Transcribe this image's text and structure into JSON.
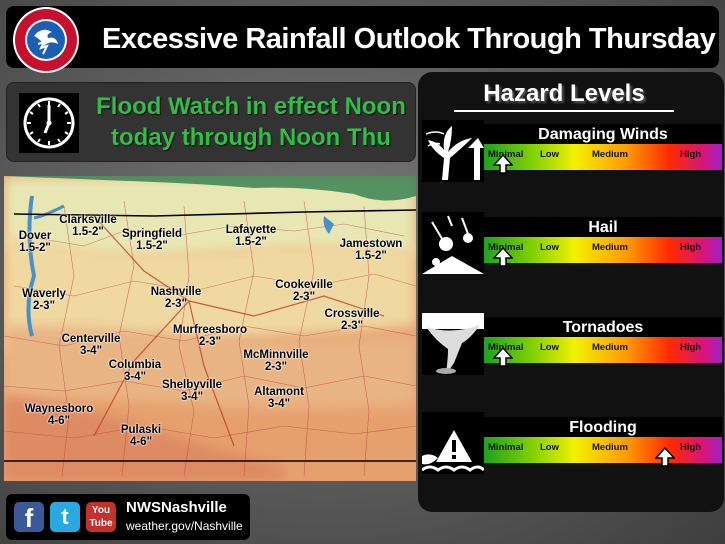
{
  "header": {
    "title": "Excessive Rainfall Outlook Through Thursday",
    "logo_text": "NATIONAL WEATHER SERVICE"
  },
  "watch": {
    "line1": "Flood Watch in effect Noon",
    "line2": "today through Noon Thu"
  },
  "map": {
    "cities": [
      {
        "name": "Clarksville",
        "amount": "1.5-2\""
      },
      {
        "name": "Dover",
        "amount": "1.5-2\""
      },
      {
        "name": "Springfield",
        "amount": "1.5-2\""
      },
      {
        "name": "Lafayette",
        "amount": "1.5-2\""
      },
      {
        "name": "Jamestown",
        "amount": "1.5-2\""
      },
      {
        "name": "Waverly",
        "amount": "2-3\""
      },
      {
        "name": "Nashville",
        "amount": "2-3\""
      },
      {
        "name": "Cookeville",
        "amount": "2-3\""
      },
      {
        "name": "Crossville",
        "amount": "2-3\""
      },
      {
        "name": "Centerville",
        "amount": "3-4\""
      },
      {
        "name": "Murfreesboro",
        "amount": "2-3\""
      },
      {
        "name": "McMinnville",
        "amount": "2-3\""
      },
      {
        "name": "Columbia",
        "amount": "3-4\""
      },
      {
        "name": "Shelbyville",
        "amount": "3-4\""
      },
      {
        "name": "Altamont",
        "amount": "3-4\""
      },
      {
        "name": "Waynesboro",
        "amount": "4-6\""
      },
      {
        "name": "Pulaski",
        "amount": "4-6\""
      }
    ]
  },
  "hazards": {
    "title": "Hazard Levels",
    "scale": [
      "Minimal",
      "Low",
      "Medium",
      "High"
    ],
    "items": [
      {
        "name": "Damaging Winds",
        "level": "Minimal",
        "level_fraction": 0.08
      },
      {
        "name": "Hail",
        "level": "Minimal",
        "level_fraction": 0.08
      },
      {
        "name": "Tornadoes",
        "level": "Minimal",
        "level_fraction": 0.08
      },
      {
        "name": "Flooding",
        "level": "High",
        "level_fraction": 0.76
      }
    ]
  },
  "social": {
    "name": "NWSNashville",
    "url": "weather.gov/Nashville",
    "icons": [
      "facebook-icon",
      "twitter-icon",
      "youtube-icon"
    ],
    "youtube_you": "You",
    "youtube_tube": "Tube"
  }
}
